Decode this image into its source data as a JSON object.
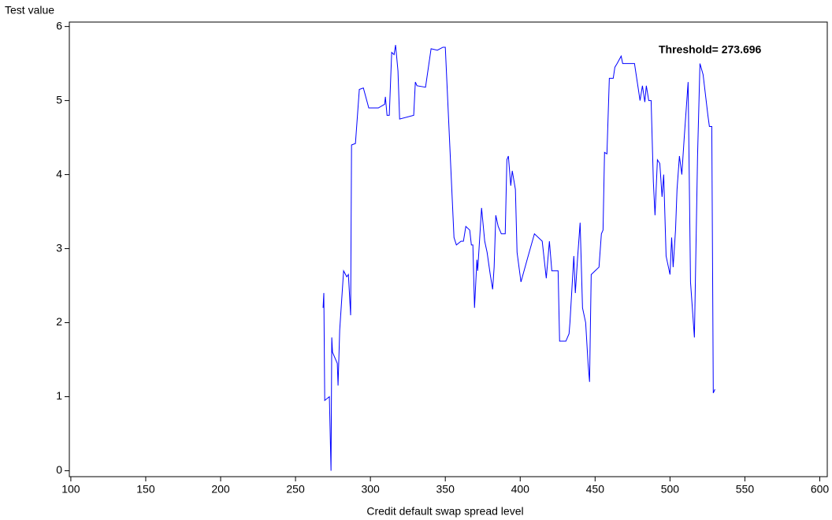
{
  "chart_data": {
    "type": "line",
    "y_label": "Test value",
    "x_label": "Credit default swap spread level",
    "annotation": "Threshold= 273.696",
    "color": "#0000ff",
    "xlim": [
      99,
      605
    ],
    "ylim": [
      -0.08,
      6.06
    ],
    "xticks": [
      100,
      150,
      200,
      250,
      300,
      350,
      400,
      450,
      500,
      550,
      600
    ],
    "yticks": [
      0,
      1,
      2,
      3,
      4,
      5,
      6
    ],
    "x": [
      268.4,
      268.9,
      269.5,
      272.6,
      273.7,
      274.2,
      274.7,
      277.9,
      278.4,
      279.5,
      282.1,
      284.2,
      285.3,
      286.8,
      287.4,
      290.0,
      292.6,
      295.3,
      298.9,
      305.3,
      309.5,
      310.0,
      311.1,
      312.6,
      314.2,
      315.8,
      316.8,
      318.4,
      319.5,
      328.9,
      330.0,
      331.1,
      336.8,
      340.5,
      344.7,
      348.4,
      350.0,
      355.8,
      357.4,
      360.5,
      362.1,
      363.7,
      366.3,
      367.4,
      368.4,
      369.5,
      371.1,
      371.6,
      374.2,
      376.3,
      377.9,
      380.0,
      381.6,
      382.6,
      383.7,
      385.3,
      387.4,
      390.0,
      391.1,
      392.1,
      393.7,
      394.7,
      396.8,
      397.9,
      400.5,
      405.3,
      409.5,
      414.7,
      417.4,
      419.5,
      421.1,
      425.3,
      426.3,
      430.5,
      432.6,
      433.2,
      435.8,
      436.8,
      438.4,
      440.0,
      441.6,
      443.7,
      445.3,
      446.3,
      447.4,
      450.0,
      452.6,
      454.2,
      455.3,
      456.3,
      457.9,
      459.5,
      462.1,
      463.2,
      464.7,
      467.4,
      468.4,
      476.3,
      480.0,
      481.6,
      483.2,
      484.2,
      485.8,
      487.4,
      488.9,
      490.0,
      491.6,
      493.2,
      494.7,
      495.8,
      497.4,
      500.0,
      501.1,
      502.1,
      503.7,
      504.7,
      506.3,
      507.9,
      509.5,
      512.1,
      513.7,
      516.3,
      518.4,
      520.0,
      522.1,
      525.3,
      526.3,
      527.9,
      528.9,
      530.0
    ],
    "values": [
      2.2,
      2.4,
      0.95,
      1.0,
      0.0,
      1.8,
      1.6,
      1.45,
      1.15,
      1.9,
      2.7,
      2.62,
      2.65,
      2.1,
      4.4,
      4.42,
      5.15,
      5.17,
      4.9,
      4.9,
      4.95,
      5.05,
      4.8,
      4.8,
      5.65,
      5.62,
      5.75,
      5.4,
      4.75,
      4.8,
      5.25,
      5.2,
      5.18,
      5.7,
      5.68,
      5.72,
      5.72,
      3.15,
      3.05,
      3.1,
      3.1,
      3.3,
      3.25,
      3.05,
      3.05,
      2.2,
      2.85,
      2.7,
      3.55,
      3.1,
      2.95,
      2.65,
      2.45,
      2.75,
      3.45,
      3.3,
      3.2,
      3.2,
      4.2,
      4.25,
      3.85,
      4.05,
      3.8,
      2.95,
      2.55,
      2.9,
      3.2,
      3.1,
      2.6,
      3.1,
      2.7,
      2.7,
      1.75,
      1.75,
      1.85,
      2.0,
      2.9,
      2.4,
      2.9,
      3.35,
      2.2,
      2.0,
      1.45,
      1.2,
      2.65,
      2.7,
      2.75,
      3.2,
      3.25,
      4.3,
      4.28,
      5.3,
      5.3,
      5.45,
      5.5,
      5.6,
      5.5,
      5.5,
      5.0,
      5.2,
      4.98,
      5.2,
      5.0,
      5.0,
      3.9,
      3.45,
      4.2,
      4.15,
      3.7,
      4.0,
      2.9,
      2.65,
      3.15,
      2.75,
      3.25,
      3.8,
      4.25,
      4.0,
      4.5,
      5.25,
      2.55,
      1.8,
      4.25,
      5.5,
      5.35,
      4.8,
      4.65,
      4.65,
      1.05,
      1.1
    ]
  }
}
